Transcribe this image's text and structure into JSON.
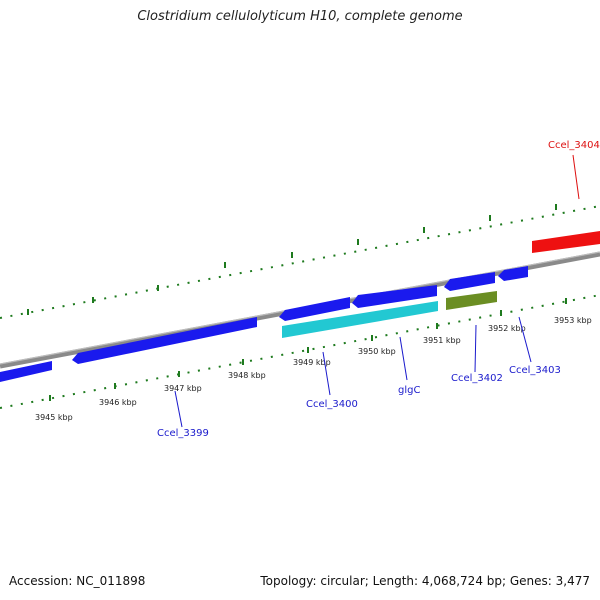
{
  "header": {
    "title": "Clostridium cellulolyticum H10, complete genome"
  },
  "footer": {
    "accession": "Accession: NC_011898",
    "summary": "Topology: circular; Length: 4,068,724 bp; Genes: 3,477"
  },
  "ruler": {
    "ticks": [
      "3945 kbp",
      "3946 kbp",
      "3947 kbp",
      "3948 kbp",
      "3949 kbp",
      "3950 kbp",
      "3951 kbp",
      "3952 kbp",
      "3953 kbp"
    ]
  },
  "gene_labels": {
    "ccel_3399": "Ccel_3399",
    "ccel_3400": "Ccel_3400",
    "glgc": "glgC",
    "ccel_3402": "Ccel_3402",
    "ccel_3403": "Ccel_3403",
    "ccel_3404": "Ccel_3404"
  },
  "colors": {
    "forward_gene": "#1a1aee",
    "glgc_gene": "#22c8d2",
    "ccel_3402_gene": "#6b8e23",
    "ccel_3404_gene": "#ee1111",
    "backbone": "#8a8a8a",
    "tick": "#1e7a1e",
    "label_blue": "#1a1acc",
    "label_red": "#dd1111"
  }
}
